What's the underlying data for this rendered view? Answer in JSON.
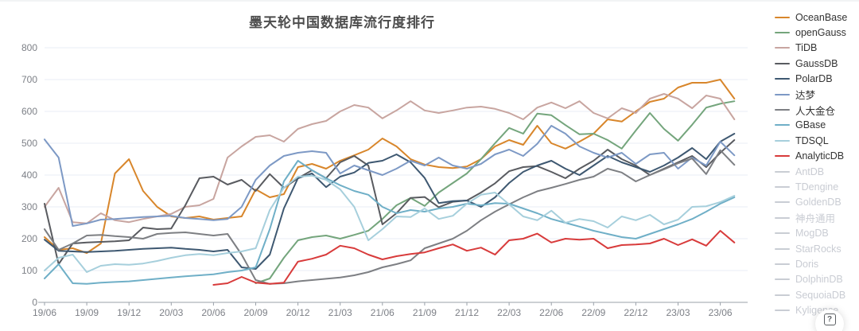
{
  "title": "墨天轮中国数据库流行度排行",
  "help_button": {
    "glyph": "?"
  },
  "colors": {
    "grid": "#e9eef5",
    "axis": "#9aa1a9",
    "axis_text": "#7d8087",
    "disabled_legend": "#c9cdd4"
  },
  "chart_data": {
    "type": "line",
    "title": "墨天轮中国数据库流行度排行",
    "xlabel": "",
    "ylabel": "",
    "ylim": [
      0,
      800
    ],
    "y_ticks": [
      0,
      100,
      200,
      300,
      400,
      500,
      600,
      700,
      800
    ],
    "grid": true,
    "legend_position": "right",
    "x_tick_labels": [
      "19/06",
      "19/09",
      "19/12",
      "20/03",
      "20/06",
      "20/09",
      "20/12",
      "21/03",
      "21/06",
      "21/09",
      "21/12",
      "22/03",
      "22/06",
      "22/09",
      "22/12",
      "23/03",
      "23/06"
    ],
    "x": [
      "19/06",
      "19/07",
      "19/08",
      "19/09",
      "19/10",
      "19/11",
      "19/12",
      "20/01",
      "20/02",
      "20/03",
      "20/04",
      "20/05",
      "20/06",
      "20/07",
      "20/08",
      "20/09",
      "20/10",
      "20/11",
      "20/12",
      "21/01",
      "21/02",
      "21/03",
      "21/04",
      "21/05",
      "21/06",
      "21/07",
      "21/08",
      "21/09",
      "21/10",
      "21/11",
      "21/12",
      "22/01",
      "22/02",
      "22/03",
      "22/04",
      "22/05",
      "22/06",
      "22/07",
      "22/08",
      "22/09",
      "22/10",
      "22/11",
      "22/12",
      "23/01",
      "23/02",
      "23/03",
      "23/04",
      "23/05",
      "23/06",
      "23/07"
    ],
    "series": [
      {
        "name": "OceanBase",
        "color": "#d8862b",
        "enabled": true,
        "values": [
          205,
          165,
          170,
          155,
          185,
          405,
          450,
          350,
          300,
          270,
          265,
          270,
          260,
          265,
          270,
          355,
          330,
          340,
          425,
          435,
          420,
          445,
          462,
          480,
          515,
          490,
          450,
          433,
          425,
          422,
          427,
          450,
          490,
          510,
          495,
          555,
          500,
          483,
          505,
          530,
          575,
          568,
          600,
          630,
          640,
          675,
          690,
          690,
          700,
          640
        ]
      },
      {
        "name": "openGauss",
        "color": "#74a57c",
        "enabled": true,
        "values": [
          null,
          null,
          null,
          null,
          null,
          null,
          null,
          null,
          null,
          null,
          null,
          null,
          null,
          null,
          null,
          60,
          75,
          140,
          195,
          205,
          210,
          200,
          212,
          225,
          262,
          305,
          328,
          303,
          345,
          375,
          405,
          450,
          500,
          548,
          530,
          593,
          588,
          557,
          528,
          530,
          510,
          483,
          540,
          595,
          545,
          508,
          558,
          612,
          624,
          632
        ]
      },
      {
        "name": "TiDB",
        "color": "#c8a5a0",
        "enabled": true,
        "values": [
          300,
          360,
          252,
          248,
          280,
          258,
          252,
          262,
          270,
          278,
          300,
          305,
          325,
          455,
          490,
          520,
          525,
          505,
          545,
          560,
          570,
          600,
          620,
          612,
          578,
          603,
          632,
          603,
          595,
          603,
          612,
          615,
          608,
          595,
          575,
          612,
          628,
          610,
          632,
          595,
          578,
          610,
          595,
          640,
          655,
          640,
          610,
          650,
          640,
          575
        ]
      },
      {
        "name": "GaussDB",
        "color": "#595b60",
        "enabled": true,
        "values": [
          310,
          120,
          185,
          188,
          190,
          192,
          195,
          235,
          230,
          232,
          305,
          390,
          395,
          370,
          385,
          350,
          403,
          360,
          390,
          415,
          390,
          440,
          460,
          430,
          245,
          280,
          328,
          331,
          299,
          316,
          320,
          345,
          374,
          412,
          425,
          428,
          410,
          390,
          420,
          445,
          480,
          450,
          430,
          400,
          420,
          440,
          460,
          425,
          470,
          510
        ]
      },
      {
        "name": "PolarDB",
        "color": "#3e5871",
        "enabled": true,
        "values": [
          197,
          162,
          160,
          158,
          160,
          162,
          165,
          168,
          170,
          172,
          168,
          165,
          160,
          165,
          110,
          105,
          150,
          295,
          390,
          405,
          362,
          395,
          408,
          438,
          445,
          465,
          440,
          391,
          312,
          318,
          320,
          300,
          330,
          375,
          410,
          430,
          445,
          420,
          400,
          430,
          460,
          440,
          425,
          410,
          430,
          455,
          485,
          450,
          505,
          530
        ]
      },
      {
        "name": "达梦",
        "color": "#7d99c5",
        "enabled": true,
        "values": [
          512,
          455,
          240,
          248,
          260,
          262,
          265,
          268,
          270,
          272,
          265,
          262,
          258,
          262,
          300,
          385,
          430,
          460,
          470,
          475,
          470,
          405,
          430,
          415,
          400,
          420,
          445,
          430,
          455,
          430,
          420,
          435,
          465,
          480,
          460,
          498,
          555,
          530,
          490,
          470,
          455,
          470,
          435,
          465,
          470,
          420,
          455,
          430,
          505,
          462
        ]
      },
      {
        "name": "人大金仓",
        "color": "#7d7f83",
        "enabled": true,
        "values": [
          230,
          165,
          185,
          210,
          212,
          208,
          205,
          200,
          215,
          218,
          220,
          215,
          210,
          215,
          150,
          70,
          58,
          60,
          66,
          70,
          74,
          78,
          85,
          95,
          110,
          120,
          132,
          170,
          185,
          200,
          225,
          258,
          285,
          308,
          330,
          349,
          360,
          372,
          385,
          395,
          420,
          408,
          380,
          400,
          418,
          437,
          452,
          403,
          478,
          432
        ]
      },
      {
        "name": "GBase",
        "color": "#6fafc7",
        "enabled": true,
        "values": [
          75,
          120,
          60,
          58,
          62,
          64,
          66,
          70,
          74,
          78,
          82,
          85,
          88,
          95,
          100,
          110,
          230,
          380,
          445,
          415,
          390,
          368,
          350,
          338,
          300,
          280,
          290,
          285,
          295,
          300,
          310,
          305,
          312,
          310,
          295,
          280,
          262,
          250,
          238,
          225,
          215,
          205,
          200,
          215,
          230,
          245,
          262,
          285,
          310,
          330
        ]
      },
      {
        "name": "TDSQL",
        "color": "#a6cfdc",
        "enabled": true,
        "values": [
          100,
          140,
          150,
          95,
          115,
          120,
          118,
          122,
          130,
          140,
          148,
          152,
          148,
          155,
          160,
          170,
          290,
          360,
          395,
          398,
          385,
          355,
          300,
          195,
          230,
          270,
          268,
          295,
          262,
          272,
          310,
          338,
          345,
          308,
          270,
          258,
          288,
          250,
          262,
          255,
          235,
          270,
          258,
          275,
          245,
          260,
          300,
          302,
          315,
          335
        ]
      },
      {
        "name": "AnalyticDB",
        "color": "#d83b3b",
        "enabled": true,
        "values": [
          null,
          null,
          null,
          null,
          null,
          null,
          null,
          null,
          null,
          null,
          null,
          null,
          55,
          60,
          80,
          62,
          58,
          62,
          128,
          137,
          150,
          178,
          170,
          150,
          135,
          145,
          152,
          157,
          170,
          182,
          162,
          172,
          150,
          195,
          200,
          216,
          188,
          200,
          197,
          200,
          170,
          180,
          182,
          185,
          200,
          180,
          198,
          178,
          225,
          188
        ]
      },
      {
        "name": "AntDB",
        "color": "#c9cdd4",
        "enabled": false,
        "values": []
      },
      {
        "name": "TDengine",
        "color": "#c9cdd4",
        "enabled": false,
        "values": []
      },
      {
        "name": "GoldenDB",
        "color": "#c9cdd4",
        "enabled": false,
        "values": []
      },
      {
        "name": "神舟通用",
        "color": "#c9cdd4",
        "enabled": false,
        "values": []
      },
      {
        "name": "MogDB",
        "color": "#c9cdd4",
        "enabled": false,
        "values": []
      },
      {
        "name": "StarRocks",
        "color": "#c9cdd4",
        "enabled": false,
        "values": []
      },
      {
        "name": "Doris",
        "color": "#c9cdd4",
        "enabled": false,
        "values": []
      },
      {
        "name": "DolphinDB",
        "color": "#c9cdd4",
        "enabled": false,
        "values": []
      },
      {
        "name": "SequoiaDB",
        "color": "#c9cdd4",
        "enabled": false,
        "values": []
      },
      {
        "name": "Kyligence",
        "color": "#c9cdd4",
        "enabled": false,
        "values": []
      }
    ]
  }
}
